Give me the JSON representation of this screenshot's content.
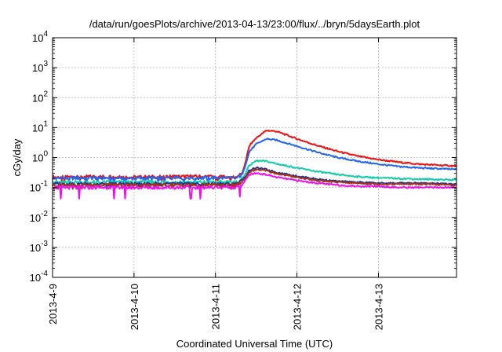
{
  "chart_data": {
    "type": "line",
    "title": "/data/run/goesPlots/archive/2013-04-13/23:00/flux/../bryn/5daysEarth.plot",
    "xlabel": "Coordinated Universal Time (UTC)",
    "ylabel": "cGy/day",
    "yscale": "log",
    "ylim": [
      0.0001,
      10000
    ],
    "xlim": [
      "2013-04-09 00:00",
      "2013-04-13 23:00"
    ],
    "x_ticks": [
      "2013-4-9",
      "2013-4-10",
      "2013-4-11",
      "2013-4-12",
      "2013-4-13"
    ],
    "y_ticks": [
      {
        "base": "10",
        "exp": "-4"
      },
      {
        "base": "10",
        "exp": "-3"
      },
      {
        "base": "10",
        "exp": "-2"
      },
      {
        "base": "10",
        "exp": "-1"
      },
      {
        "base": "10",
        "exp": "0"
      },
      {
        "base": "10",
        "exp": "1"
      },
      {
        "base": "10",
        "exp": "2"
      },
      {
        "base": "10",
        "exp": "3"
      },
      {
        "base": "10",
        "exp": "4"
      }
    ],
    "grid": true,
    "legend": "none",
    "series": [
      {
        "color": "#ee1111",
        "x": [
          "2013-04-09 00:00",
          "2013-04-09 12:00",
          "2013-04-10 00:00",
          "2013-04-10 12:00",
          "2013-04-11 00:00",
          "2013-04-11 06:00",
          "2013-04-11 08:00",
          "2013-04-11 10:00",
          "2013-04-11 12:00",
          "2013-04-11 15:00",
          "2013-04-11 18:00",
          "2013-04-12 00:00",
          "2013-04-12 06:00",
          "2013-04-12 12:00",
          "2013-04-12 18:00",
          "2013-04-13 00:00",
          "2013-04-13 06:00",
          "2013-04-13 12:00",
          "2013-04-13 23:00"
        ],
        "values": [
          0.22,
          0.23,
          0.22,
          0.23,
          0.23,
          0.22,
          0.3,
          2.5,
          4.5,
          8.0,
          7.5,
          4.2,
          2.5,
          1.6,
          1.1,
          0.85,
          0.7,
          0.6,
          0.52
        ]
      },
      {
        "color": "#2266ee",
        "x": [
          "2013-04-09 00:00",
          "2013-04-09 12:00",
          "2013-04-10 00:00",
          "2013-04-10 12:00",
          "2013-04-11 00:00",
          "2013-04-11 06:00",
          "2013-04-11 08:00",
          "2013-04-11 10:00",
          "2013-04-11 12:00",
          "2013-04-11 15:00",
          "2013-04-11 18:00",
          "2013-04-12 00:00",
          "2013-04-12 06:00",
          "2013-04-12 12:00",
          "2013-04-12 18:00",
          "2013-04-13 00:00",
          "2013-04-13 06:00",
          "2013-04-13 12:00",
          "2013-04-13 23:00"
        ],
        "values": [
          0.2,
          0.21,
          0.2,
          0.21,
          0.21,
          0.2,
          0.28,
          1.6,
          2.8,
          4.2,
          3.8,
          2.4,
          1.5,
          1.0,
          0.75,
          0.6,
          0.5,
          0.45,
          0.4
        ]
      },
      {
        "color": "#11ccaa",
        "x": [
          "2013-04-09 00:00",
          "2013-04-09 12:00",
          "2013-04-10 00:00",
          "2013-04-10 12:00",
          "2013-04-11 00:00",
          "2013-04-11 06:00",
          "2013-04-11 08:00",
          "2013-04-11 10:00",
          "2013-04-11 12:00",
          "2013-04-11 15:00",
          "2013-04-11 18:00",
          "2013-04-12 00:00",
          "2013-04-12 06:00",
          "2013-04-12 12:00",
          "2013-04-12 18:00",
          "2013-04-13 00:00",
          "2013-04-13 06:00",
          "2013-04-13 12:00",
          "2013-04-13 23:00"
        ],
        "values": [
          0.15,
          0.15,
          0.15,
          0.15,
          0.15,
          0.15,
          0.2,
          0.55,
          0.78,
          0.75,
          0.62,
          0.45,
          0.34,
          0.27,
          0.23,
          0.21,
          0.2,
          0.19,
          0.18
        ]
      },
      {
        "color": "#223399",
        "x": [
          "2013-04-09 00:00",
          "2013-04-09 12:00",
          "2013-04-10 00:00",
          "2013-04-10 12:00",
          "2013-04-11 00:00",
          "2013-04-11 06:00",
          "2013-04-11 08:00",
          "2013-04-11 10:00",
          "2013-04-11 12:00",
          "2013-04-11 15:00",
          "2013-04-11 18:00",
          "2013-04-12 00:00",
          "2013-04-12 06:00",
          "2013-04-12 12:00",
          "2013-04-12 18:00",
          "2013-04-13 00:00",
          "2013-04-13 06:00",
          "2013-04-13 12:00",
          "2013-04-13 23:00"
        ],
        "values": [
          0.13,
          0.13,
          0.13,
          0.13,
          0.13,
          0.13,
          0.17,
          0.38,
          0.45,
          0.4,
          0.32,
          0.24,
          0.19,
          0.16,
          0.15,
          0.14,
          0.14,
          0.14,
          0.13
        ]
      },
      {
        "color": "#aa3311",
        "x": [
          "2013-04-09 00:00",
          "2013-04-09 12:00",
          "2013-04-10 00:00",
          "2013-04-10 12:00",
          "2013-04-11 00:00",
          "2013-04-11 06:00",
          "2013-04-11 08:00",
          "2013-04-11 10:00",
          "2013-04-11 12:00",
          "2013-04-11 15:00",
          "2013-04-11 18:00",
          "2013-04-12 00:00",
          "2013-04-12 06:00",
          "2013-04-12 12:00",
          "2013-04-12 18:00",
          "2013-04-13 00:00",
          "2013-04-13 06:00",
          "2013-04-13 12:00",
          "2013-04-13 23:00"
        ],
        "values": [
          0.12,
          0.12,
          0.12,
          0.12,
          0.12,
          0.12,
          0.16,
          0.33,
          0.4,
          0.36,
          0.29,
          0.22,
          0.17,
          0.15,
          0.14,
          0.13,
          0.13,
          0.13,
          0.12
        ]
      },
      {
        "color": "#ee11ee",
        "x": [
          "2013-04-09 00:00",
          "2013-04-09 12:00",
          "2013-04-10 00:00",
          "2013-04-10 12:00",
          "2013-04-11 00:00",
          "2013-04-11 06:00",
          "2013-04-11 08:00",
          "2013-04-11 10:00",
          "2013-04-11 12:00",
          "2013-04-11 15:00",
          "2013-04-11 18:00",
          "2013-04-12 00:00",
          "2013-04-12 06:00",
          "2013-04-12 12:00",
          "2013-04-12 18:00",
          "2013-04-13 00:00",
          "2013-04-13 06:00",
          "2013-04-13 12:00",
          "2013-04-13 23:00"
        ],
        "values": [
          0.1,
          0.1,
          0.1,
          0.1,
          0.1,
          0.1,
          0.13,
          0.27,
          0.3,
          0.27,
          0.22,
          0.17,
          0.14,
          0.12,
          0.11,
          0.11,
          0.1,
          0.1,
          0.1
        ]
      }
    ]
  }
}
